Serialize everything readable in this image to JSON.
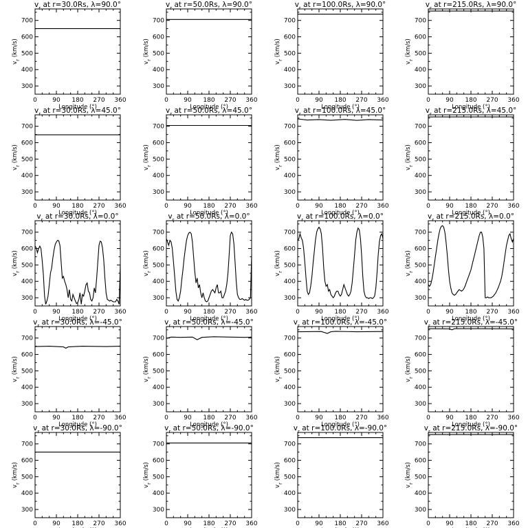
{
  "chart_data": {
    "type": "line",
    "layout": "5x4 grid of small multiples",
    "shared_axes": {
      "xlabel": "Longitude (°)",
      "ylabel": "vr (km/s)",
      "xlim": [
        0,
        360
      ],
      "ylim": [
        250,
        770
      ],
      "xticks": [
        0,
        90,
        180,
        270,
        360
      ],
      "yticks": [
        300,
        400,
        500,
        600,
        700
      ]
    },
    "panels": [
      {
        "title": "vr at r=30.0Rs, λ=90.0°",
        "x": [
          0,
          360
        ],
        "y": [
          650,
          650
        ]
      },
      {
        "title": "vr at r=50.0Rs, λ=90.0°",
        "x": [
          0,
          360
        ],
        "y": [
          706,
          706
        ]
      },
      {
        "title": "vr at r=100.0Rs, λ=90.0°",
        "x": [
          0,
          360
        ],
        "y": [
          738,
          738
        ]
      },
      {
        "title": "vr at r=215.0Rs, λ=90.0°",
        "x": [
          0,
          360
        ],
        "y": [
          757,
          757
        ]
      },
      {
        "title": "vr at r=30.0Rs, λ=45.0°",
        "x": [
          0,
          360
        ],
        "y": [
          648,
          648
        ]
      },
      {
        "title": "vr at r=50.0Rs, λ=45.0°",
        "x": [
          0,
          360
        ],
        "y": [
          705,
          705
        ]
      },
      {
        "title": "vr at r=100.0Rs, λ=45.0°",
        "x": [
          0,
          40,
          90,
          140,
          200,
          250,
          300,
          360
        ],
        "y": [
          745,
          738,
          741,
          737,
          742,
          736,
          741,
          738
        ]
      },
      {
        "title": "vr at r=215.0Rs, λ=45.0°",
        "x": [
          0,
          360
        ],
        "y": [
          757,
          757
        ]
      },
      {
        "title": "vr at r=30.0Rs, λ=0.0°",
        "x": [
          0,
          5,
          10,
          15,
          20,
          25,
          30,
          35,
          40,
          45,
          50,
          55,
          60,
          65,
          70,
          75,
          80,
          85,
          90,
          95,
          100,
          105,
          110,
          115,
          120,
          125,
          130,
          135,
          140,
          145,
          150,
          155,
          160,
          165,
          170,
          175,
          180,
          185,
          190,
          195,
          200,
          205,
          210,
          215,
          220,
          225,
          230,
          235,
          240,
          245,
          250,
          255,
          260,
          265,
          270,
          275,
          280,
          285,
          290,
          295,
          300,
          305,
          310,
          315,
          320,
          325,
          330,
          335,
          340,
          345,
          350,
          355,
          360
        ],
        "y": [
          615,
          605,
          575,
          600,
          615,
          600,
          530,
          440,
          310,
          260,
          280,
          310,
          380,
          450,
          480,
          540,
          590,
          625,
          640,
          650,
          648,
          620,
          520,
          420,
          430,
          400,
          380,
          350,
          300,
          350,
          290,
          280,
          320,
          300,
          280,
          265,
          270,
          290,
          330,
          260,
          320,
          310,
          340,
          380,
          390,
          340,
          330,
          290,
          280,
          300,
          360,
          330,
          420,
          520,
          620,
          645,
          640,
          600,
          530,
          420,
          330,
          290,
          285,
          280,
          285,
          280,
          275,
          275,
          275,
          290,
          280,
          260,
          500
        ]
      },
      {
        "title": "vr at r=50.0Rs, λ=0.0°",
        "x": [
          0,
          5,
          10,
          15,
          20,
          25,
          30,
          35,
          40,
          45,
          50,
          55,
          60,
          65,
          70,
          75,
          80,
          85,
          90,
          95,
          100,
          105,
          110,
          115,
          120,
          125,
          130,
          135,
          140,
          145,
          150,
          155,
          160,
          165,
          170,
          175,
          180,
          185,
          190,
          195,
          200,
          205,
          210,
          215,
          220,
          225,
          230,
          235,
          240,
          245,
          250,
          255,
          260,
          265,
          270,
          275,
          280,
          285,
          290,
          295,
          300,
          305,
          310,
          315,
          320,
          325,
          330,
          335,
          340,
          345,
          350,
          355,
          360
        ],
        "y": [
          660,
          640,
          620,
          650,
          640,
          600,
          520,
          430,
          340,
          290,
          280,
          300,
          340,
          410,
          470,
          540,
          600,
          650,
          680,
          695,
          700,
          690,
          640,
          550,
          460,
          390,
          420,
          360,
          380,
          330,
          300,
          330,
          300,
          280,
          275,
          280,
          300,
          320,
          340,
          350,
          340,
          330,
          360,
          380,
          330,
          330,
          340,
          300,
          300,
          320,
          340,
          380,
          450,
          560,
          680,
          700,
          690,
          630,
          520,
          400,
          320,
          300,
          290,
          290,
          295,
          290,
          285,
          290,
          285,
          285,
          290,
          300,
          560
        ]
      },
      {
        "title": "vr at r=100.0Rs, λ=0.0°",
        "x": [
          0,
          5,
          10,
          15,
          20,
          25,
          30,
          35,
          40,
          45,
          50,
          55,
          60,
          65,
          70,
          75,
          80,
          85,
          90,
          95,
          100,
          105,
          110,
          115,
          120,
          125,
          130,
          135,
          140,
          145,
          150,
          155,
          160,
          165,
          170,
          175,
          180,
          185,
          190,
          195,
          200,
          205,
          210,
          215,
          220,
          225,
          230,
          235,
          240,
          245,
          250,
          255,
          260,
          265,
          270,
          275,
          280,
          285,
          290,
          295,
          300,
          305,
          310,
          315,
          320,
          325,
          330,
          335,
          340,
          345,
          350,
          355,
          360
        ],
        "y": [
          650,
          660,
          690,
          665,
          650,
          600,
          520,
          420,
          340,
          320,
          330,
          370,
          430,
          510,
          580,
          650,
          700,
          720,
          730,
          720,
          690,
          600,
          480,
          400,
          370,
          380,
          340,
          350,
          320,
          310,
          300,
          310,
          330,
          340,
          340,
          320,
          310,
          320,
          350,
          380,
          360,
          340,
          320,
          310,
          320,
          340,
          390,
          470,
          560,
          650,
          700,
          725,
          715,
          660,
          560,
          430,
          340,
          310,
          300,
          300,
          295,
          300,
          300,
          295,
          300,
          310,
          360,
          450,
          560,
          640,
          680,
          690,
          660
        ]
      },
      {
        "title": "vr at r=215.0Rs, λ=0.0°",
        "x": [
          0,
          5,
          10,
          15,
          20,
          25,
          30,
          35,
          40,
          45,
          50,
          55,
          60,
          65,
          70,
          75,
          80,
          85,
          90,
          95,
          100,
          105,
          110,
          115,
          120,
          125,
          130,
          135,
          140,
          145,
          150,
          155,
          160,
          165,
          170,
          175,
          180,
          185,
          190,
          195,
          200,
          205,
          210,
          215,
          220,
          225,
          230,
          235,
          240,
          245,
          250,
          255,
          260,
          265,
          270,
          275,
          280,
          285,
          290,
          295,
          300,
          305,
          310,
          315,
          320,
          325,
          330,
          335,
          340,
          345,
          350,
          355,
          360
        ],
        "y": [
          380,
          370,
          380,
          410,
          450,
          500,
          550,
          600,
          650,
          690,
          720,
          735,
          740,
          730,
          700,
          640,
          560,
          470,
          400,
          360,
          330,
          320,
          315,
          320,
          330,
          340,
          350,
          345,
          340,
          345,
          355,
          370,
          390,
          410,
          430,
          450,
          470,
          500,
          530,
          560,
          590,
          620,
          650,
          680,
          700,
          700,
          670,
          600,
          300,
          300,
          305,
          300,
          300,
          300,
          305,
          310,
          320,
          330,
          345,
          360,
          380,
          400,
          430,
          470,
          520,
          570,
          620,
          650,
          680,
          690,
          660,
          640,
          660
        ]
      },
      {
        "title": "vr at r=30.0Rs, λ=-45.0°",
        "x": [
          0,
          60,
          120,
          130,
          140,
          200,
          300,
          360
        ],
        "y": [
          648,
          650,
          646,
          638,
          646,
          650,
          648,
          650
        ]
      },
      {
        "title": "vr at r=50.0Rs, λ=-45.0°",
        "x": [
          0,
          20,
          60,
          110,
          130,
          150,
          200,
          270,
          330,
          360
        ],
        "y": [
          698,
          706,
          704,
          706,
          690,
          704,
          708,
          706,
          704,
          706
        ]
      },
      {
        "title": "vr at r=100.0Rs, λ=-45.0°",
        "x": [
          0,
          100,
          125,
          140,
          160,
          250,
          360
        ],
        "y": [
          738,
          740,
          728,
          738,
          741,
          738,
          740
        ]
      },
      {
        "title": "vr at r=215.0Rs, λ=-45.0°",
        "x": [
          0,
          90,
          100,
          110,
          200,
          360
        ],
        "y": [
          757,
          756,
          750,
          757,
          757,
          756
        ]
      },
      {
        "title": "vr at r=30.0Rs, λ=-90.0°",
        "x": [
          0,
          360
        ],
        "y": [
          650,
          650
        ]
      },
      {
        "title": "vr at r=50.0Rs, λ=-90.0°",
        "x": [
          0,
          360
        ],
        "y": [
          706,
          706
        ]
      },
      {
        "title": "vr at r=100.0Rs, λ=-90.0°",
        "x": [
          0,
          360
        ],
        "y": [
          738,
          738
        ]
      },
      {
        "title": "vr at r=215.0Rs, λ=-90.0°",
        "x": [
          0,
          360
        ],
        "y": [
          757,
          757
        ]
      }
    ]
  }
}
